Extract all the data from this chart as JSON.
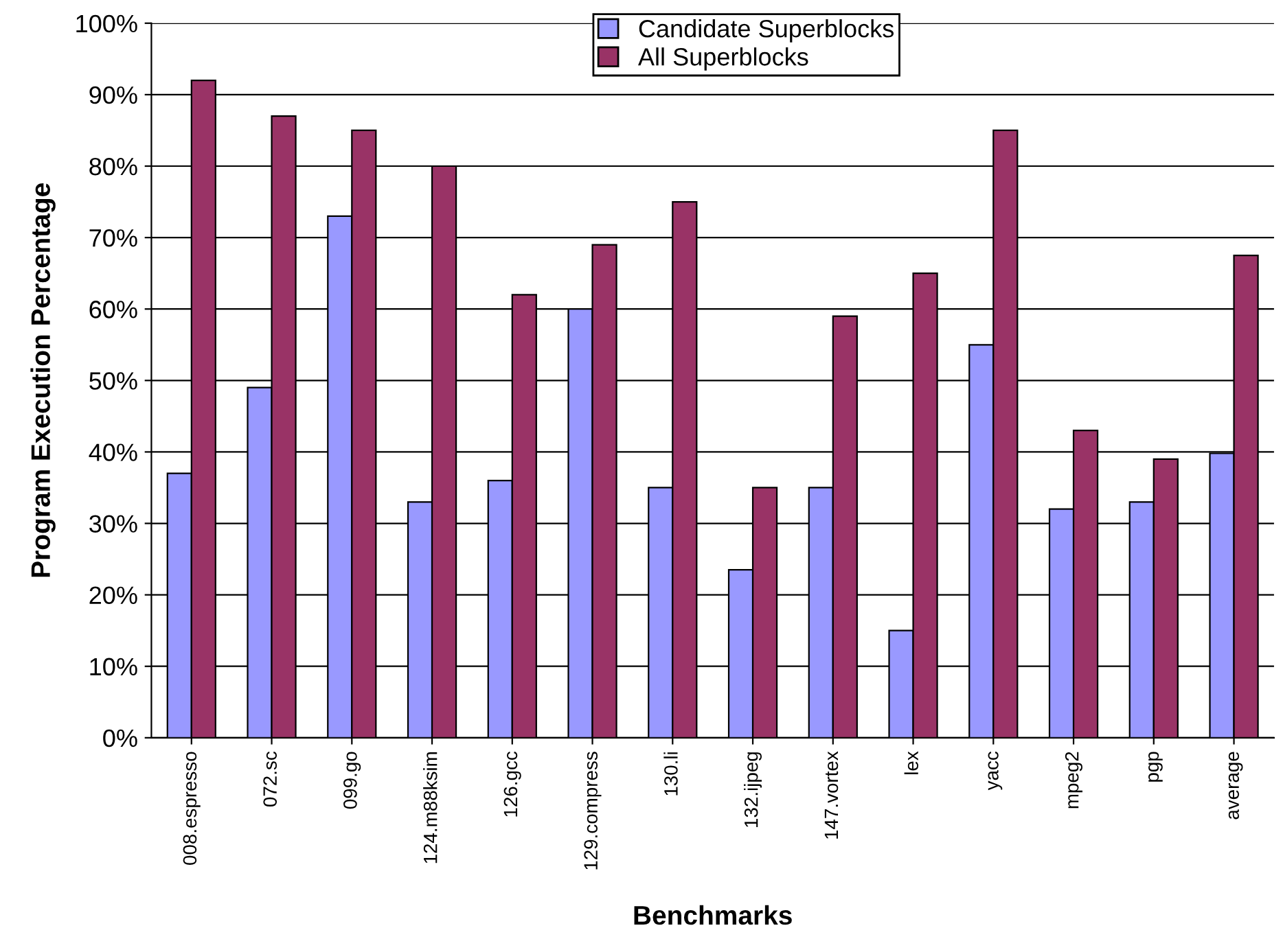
{
  "chart_data": {
    "type": "bar",
    "xlabel": "Benchmarks",
    "ylabel": "Program Execution Percentage",
    "categories": [
      "008.espresso",
      "072.sc",
      "099.go",
      "124.m88ksim",
      "126.gcc",
      "129.compress",
      "130.li",
      "132.ijpeg",
      "147.vortex",
      "lex",
      "yacc",
      "mpeg2",
      "pgp",
      "average"
    ],
    "series": [
      {
        "name": "Candidate Superblocks",
        "color": "#9999ff",
        "values": [
          37,
          49,
          73,
          33,
          36,
          60,
          35,
          23.5,
          35,
          15,
          55,
          32,
          33,
          39.8
        ]
      },
      {
        "name": "All Superblocks",
        "color": "#993366",
        "values": [
          92,
          87,
          85,
          80,
          62,
          69,
          75,
          35,
          59,
          65,
          85,
          43,
          39,
          67.5
        ]
      }
    ],
    "ylim": [
      0,
      100
    ],
    "yticks": [
      {
        "value": 0,
        "label": "0%"
      },
      {
        "value": 10,
        "label": "10%"
      },
      {
        "value": 20,
        "label": "20%"
      },
      {
        "value": 30,
        "label": "30%"
      },
      {
        "value": 40,
        "label": "40%"
      },
      {
        "value": 50,
        "label": "50%"
      },
      {
        "value": 60,
        "label": "60%"
      },
      {
        "value": 70,
        "label": "70%"
      },
      {
        "value": 80,
        "label": "80%"
      },
      {
        "value": 90,
        "label": "90%"
      },
      {
        "value": 100,
        "label": "100%"
      }
    ],
    "grid": "y",
    "legend": "top"
  }
}
